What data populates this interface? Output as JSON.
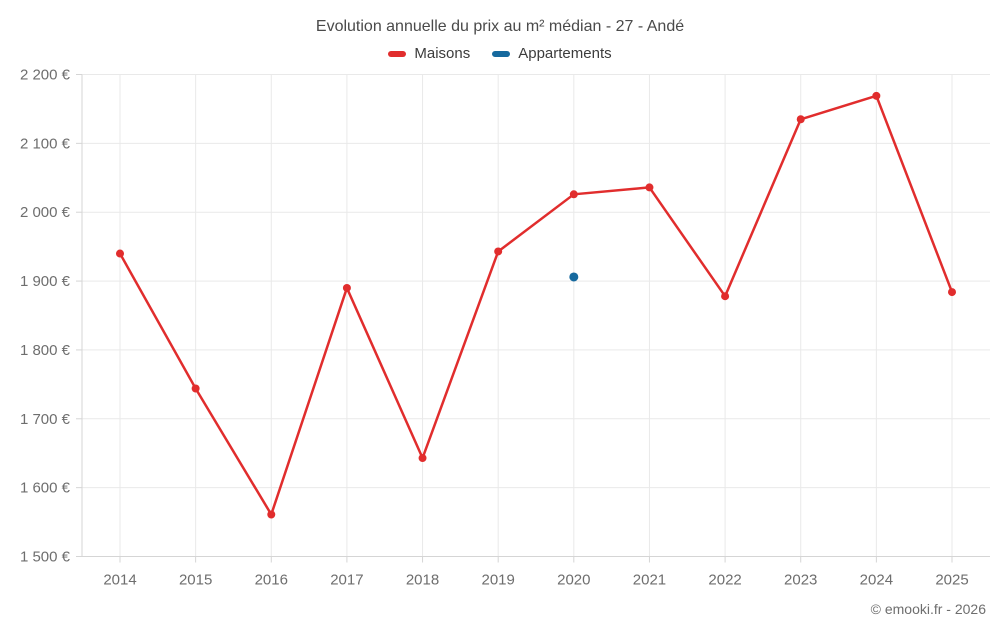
{
  "title": "Evolution annuelle du prix au m² médian - 27 - Andé",
  "legend": {
    "items": [
      {
        "label": "Maisons",
        "color": "#e12d2d"
      },
      {
        "label": "Appartements",
        "color": "#16699e"
      }
    ]
  },
  "footer": {
    "credit": "© emooki.fr - 2026"
  },
  "colors": {
    "background": "#ffffff",
    "grid": "#e9e9e9",
    "axis": "#d5d5d5",
    "tick": "#d5d5d5",
    "tick_label": "#6e6e6e",
    "title_text": "#4a4a4a",
    "legend_text": "#3c3c3c",
    "maisons": "#e12d2d",
    "appartements": "#16699e"
  },
  "chart_data": {
    "type": "line",
    "title": "Evolution annuelle du prix au m² médian - 27 - Andé",
    "xlabel": "",
    "ylabel": "",
    "x_labels": [
      "2014",
      "2015",
      "2016",
      "2017",
      "2018",
      "2019",
      "2020",
      "2021",
      "2022",
      "2023",
      "2024",
      "2025"
    ],
    "series": [
      {
        "name": "Maisons",
        "color": "#e12d2d",
        "marker_radius": 4,
        "line_width": 2.5,
        "values": [
          1940,
          1744,
          1561,
          1890,
          1643,
          1943,
          2026,
          2036,
          1878,
          2135,
          2169,
          1884
        ]
      },
      {
        "name": "Appartements",
        "color": "#16699e",
        "marker_radius": 4.5,
        "line_width": 2.5,
        "values": [
          null,
          null,
          null,
          null,
          null,
          null,
          1906,
          null,
          null,
          null,
          null,
          null
        ]
      }
    ],
    "ylim": [
      1500,
      2200
    ],
    "ytick_step": 100,
    "ytick_values": [
      1500,
      1600,
      1700,
      1800,
      1900,
      2000,
      2100,
      2200
    ],
    "ytick_labels": [
      "1 500 €",
      "1 600 €",
      "1 700 €",
      "1 800 €",
      "1 900 €",
      "2 000 €",
      "2 100 €",
      "2 200 €"
    ],
    "grid": true,
    "legend_position": "top"
  }
}
